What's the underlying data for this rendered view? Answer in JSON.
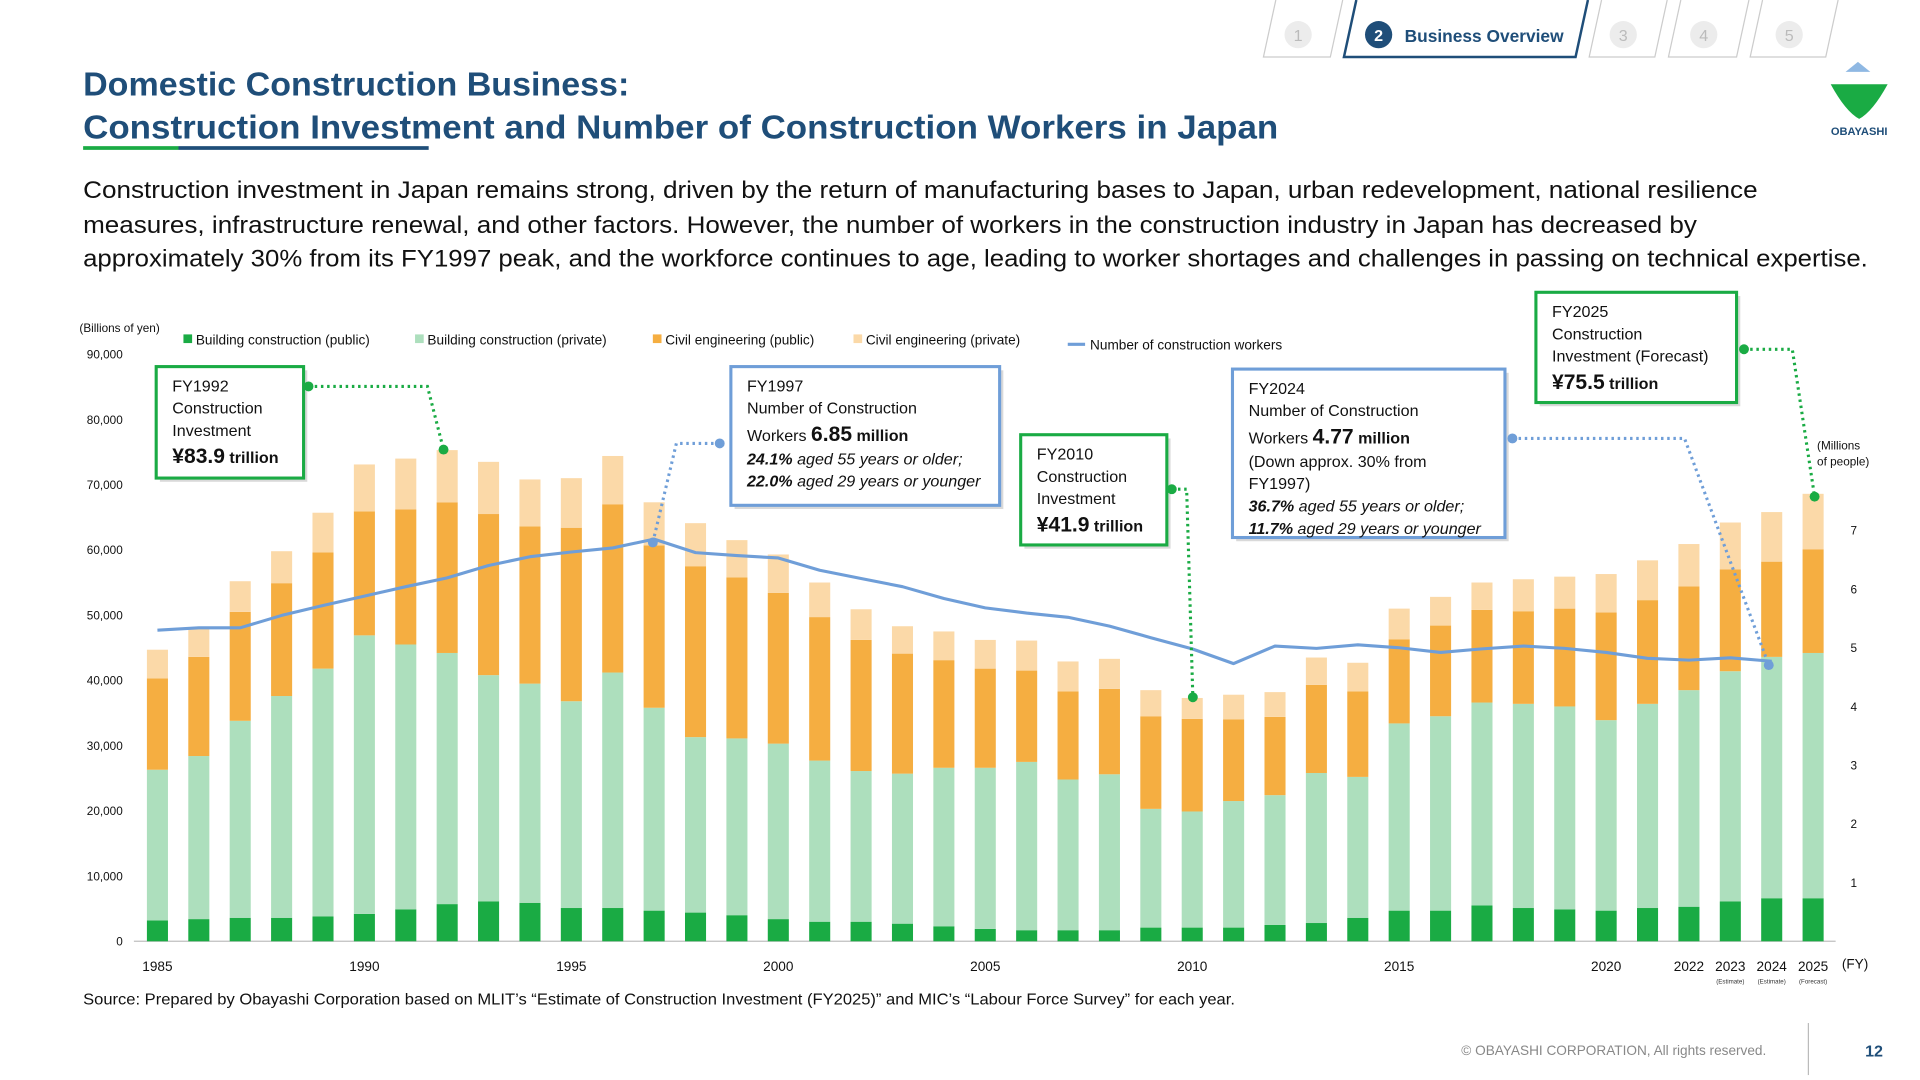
{
  "nav": {
    "items": [
      "1",
      "2",
      "3",
      "4",
      "5"
    ],
    "active": 1,
    "active_label": "Business Overview"
  },
  "logo": "OBAYASHI",
  "title_lines": [
    "Domestic Construction Business:",
    "Construction Investment and Number of Construction Workers in Japan"
  ],
  "description_lines": [
    "Construction investment in Japan remains strong, driven by the return of manufacturing bases to Japan, urban redevelopment, national resilience",
    "measures, infrastructure renewal, and other factors. However, the number of workers in the construction industry in Japan has decreased by",
    "approximately 30% from its FY1997 peak, and the workforce continues to age, leading to worker shortages and challenges in passing on technical expertise."
  ],
  "source": "Source: Prepared by Obayashi Corporation based on MLIT’s “Estimate of Construction Investment (FY2025)” and MIC’s “Labour Force Survey” for each year.",
  "footer": "© OBAYASHI CORPORATION, All rights reserved.",
  "page_number": "12",
  "chart_data": {
    "type": "bar",
    "stacked": true,
    "ylabel": "(Billions of yen)",
    "y2label_lines": [
      "(Millions",
      "of people)"
    ],
    "xlabel": "(FY)",
    "categories": [
      "1985",
      null,
      null,
      null,
      null,
      "1990",
      null,
      null,
      null,
      null,
      "1995",
      null,
      null,
      null,
      null,
      "2000",
      null,
      null,
      null,
      null,
      "2005",
      null,
      null,
      null,
      null,
      "2010",
      null,
      null,
      null,
      null,
      "2015",
      null,
      null,
      null,
      null,
      "2020",
      null,
      "2022",
      "2023",
      "2024",
      "2025"
    ],
    "category_notes": [
      null,
      null,
      null,
      null,
      null,
      null,
      null,
      null,
      null,
      null,
      null,
      null,
      null,
      null,
      null,
      null,
      null,
      null,
      null,
      null,
      null,
      null,
      null,
      null,
      null,
      null,
      null,
      null,
      null,
      null,
      null,
      null,
      null,
      null,
      null,
      null,
      null,
      null,
      "(Estimate)",
      "(Estimate)",
      "(Forecast)"
    ],
    "ylim": [
      0,
      90000
    ],
    "yticks": [
      0,
      {
        "value": 10000,
        "label": "10,000"
      },
      {
        "value": 20000,
        "label": "20,000"
      },
      {
        "value": 30000,
        "label": "30,000"
      },
      {
        "value": 40000,
        "label": "40,000"
      },
      {
        "value": 50000,
        "label": "50,000"
      },
      {
        "value": 60000,
        "label": "60,000"
      },
      {
        "value": 70000,
        "label": "70,000"
      },
      {
        "value": 80000,
        "label": "80,000"
      },
      {
        "value": 90000,
        "label": "90,000"
      }
    ],
    "y2lim": [
      0,
      10
    ],
    "y2ticks": [
      1,
      2,
      3,
      4,
      5,
      6,
      7
    ],
    "grid": false,
    "series": [
      {
        "name": "Building construction (public)",
        "color": "#1aab44",
        "values": [
          3200,
          3400,
          3600,
          3600,
          3800,
          4200,
          4900,
          5700,
          6100,
          5900,
          5100,
          5100,
          4700,
          4400,
          4000,
          3400,
          3000,
          3000,
          2700,
          2300,
          1900,
          1700,
          1700,
          1700,
          2100,
          2100,
          2100,
          2500,
          2800,
          3600,
          4700,
          4700,
          5500,
          5100,
          4900,
          4700,
          5100,
          5300,
          6100,
          6600,
          6600
        ]
      },
      {
        "name": "Building construction (private)",
        "color": "#addfbd",
        "values": [
          23100,
          25000,
          30200,
          34000,
          38000,
          42700,
          40600,
          38500,
          34700,
          33600,
          31700,
          36100,
          31100,
          26900,
          27100,
          26900,
          24700,
          23100,
          23000,
          24300,
          24700,
          25800,
          23100,
          23900,
          18200,
          17800,
          19400,
          19900,
          23000,
          21600,
          28700,
          29800,
          31100,
          31300,
          31100,
          29200,
          31300,
          33200,
          35300,
          37000,
          37600
        ]
      },
      {
        "name": "Civil engineering (public)",
        "color": "#f5ae41",
        "values": [
          14000,
          15200,
          16700,
          17300,
          17800,
          19000,
          20700,
          23100,
          24700,
          24100,
          26600,
          25800,
          24900,
          26200,
          24700,
          23100,
          22000,
          20100,
          18400,
          16500,
          15200,
          14000,
          13500,
          13100,
          14200,
          14200,
          12500,
          12000,
          13500,
          13100,
          12900,
          13900,
          14200,
          14200,
          15000,
          16500,
          15900,
          15900,
          15600,
          14600,
          15900
        ]
      },
      {
        "name": "Civil engineering (private)",
        "color": "#fbd9a8",
        "values": [
          4400,
          4400,
          4700,
          4900,
          6100,
          7200,
          7800,
          8000,
          8000,
          7200,
          7600,
          7400,
          6600,
          6600,
          5700,
          5900,
          5300,
          4700,
          4200,
          4400,
          4400,
          4600,
          4600,
          4600,
          4000,
          3200,
          3800,
          3800,
          4200,
          4400,
          4700,
          4400,
          4200,
          4900,
          4900,
          5900,
          6100,
          6500,
          7200,
          7600,
          8500
        ]
      },
      {
        "name": "Number of construction workers",
        "type": "line",
        "axis": "y2",
        "color": "#6f9ed8",
        "values": [
          5.3,
          5.34,
          5.34,
          5.55,
          5.72,
          5.88,
          6.04,
          6.19,
          6.4,
          6.55,
          6.63,
          6.7,
          6.85,
          6.62,
          6.57,
          6.53,
          6.32,
          6.18,
          6.04,
          5.84,
          5.68,
          5.59,
          5.52,
          5.37,
          5.17,
          4.98,
          4.73,
          5.03,
          4.99,
          5.05,
          5.0,
          4.92,
          4.98,
          5.03,
          4.99,
          4.92,
          4.82,
          4.79,
          4.83,
          4.77,
          null
        ]
      }
    ],
    "annotations": [
      {
        "border_color": "#1aab44",
        "lines": [
          [
            {
              "t": "FY1992",
              "s": "n"
            }
          ],
          [
            {
              "t": "Construction",
              "s": "n"
            }
          ],
          [
            {
              "t": "Investment",
              "s": "n"
            }
          ],
          [
            {
              "t": "¥83.9",
              "s": "big"
            },
            {
              "t": " trillion",
              "s": "b"
            }
          ]
        ]
      },
      {
        "border_color": "#6f9ed8",
        "lines": [
          [
            {
              "t": "FY1997",
              "s": "n"
            }
          ],
          [
            {
              "t": "Number of Construction",
              "s": "n"
            }
          ],
          [
            {
              "t": "Workers ",
              "s": "n"
            },
            {
              "t": "6.85",
              "s": "big"
            },
            {
              "t": " million",
              "s": "b"
            }
          ],
          [
            {
              "t": "24.1%",
              "s": "bi"
            },
            {
              "t": " aged 55 years or older;",
              "s": "i"
            }
          ],
          [
            {
              "t": "22.0%",
              "s": "bi"
            },
            {
              "t": " aged 29 years or younger",
              "s": "i"
            }
          ]
        ]
      },
      {
        "border_color": "#1aab44",
        "lines": [
          [
            {
              "t": "FY2010",
              "s": "n"
            }
          ],
          [
            {
              "t": "Construction",
              "s": "n"
            }
          ],
          [
            {
              "t": "Investment",
              "s": "n"
            }
          ],
          [
            {
              "t": "¥41.9",
              "s": "big"
            },
            {
              "t": " trillion",
              "s": "b"
            }
          ]
        ]
      },
      {
        "border_color": "#6f9ed8",
        "lines": [
          [
            {
              "t": "FY2024",
              "s": "n"
            }
          ],
          [
            {
              "t": "Number of Construction",
              "s": "n"
            }
          ],
          [
            {
              "t": "Workers ",
              "s": "n"
            },
            {
              "t": "4.77",
              "s": "big"
            },
            {
              "t": " million",
              "s": "b"
            }
          ],
          [
            {
              "t": "(Down approx. 30% from",
              "s": "n"
            }
          ],
          [
            {
              "t": "FY1997)",
              "s": "n"
            }
          ],
          [
            {
              "t": "36.7%",
              "s": "bi"
            },
            {
              "t": " aged 55 years or older;",
              "s": "i"
            }
          ],
          [
            {
              "t": "11.7%",
              "s": "bi"
            },
            {
              "t": " aged 29 years or younger",
              "s": "i"
            }
          ]
        ]
      },
      {
        "border_color": "#1aab44",
        "lines": [
          [
            {
              "t": "FY2025",
              "s": "n"
            }
          ],
          [
            {
              "t": "Construction",
              "s": "n"
            }
          ],
          [
            {
              "t": "Investment (Forecast)",
              "s": "n"
            }
          ],
          [
            {
              "t": "¥75.5",
              "s": "big"
            },
            {
              "t": " trillion",
              "s": "b"
            }
          ]
        ]
      }
    ]
  }
}
